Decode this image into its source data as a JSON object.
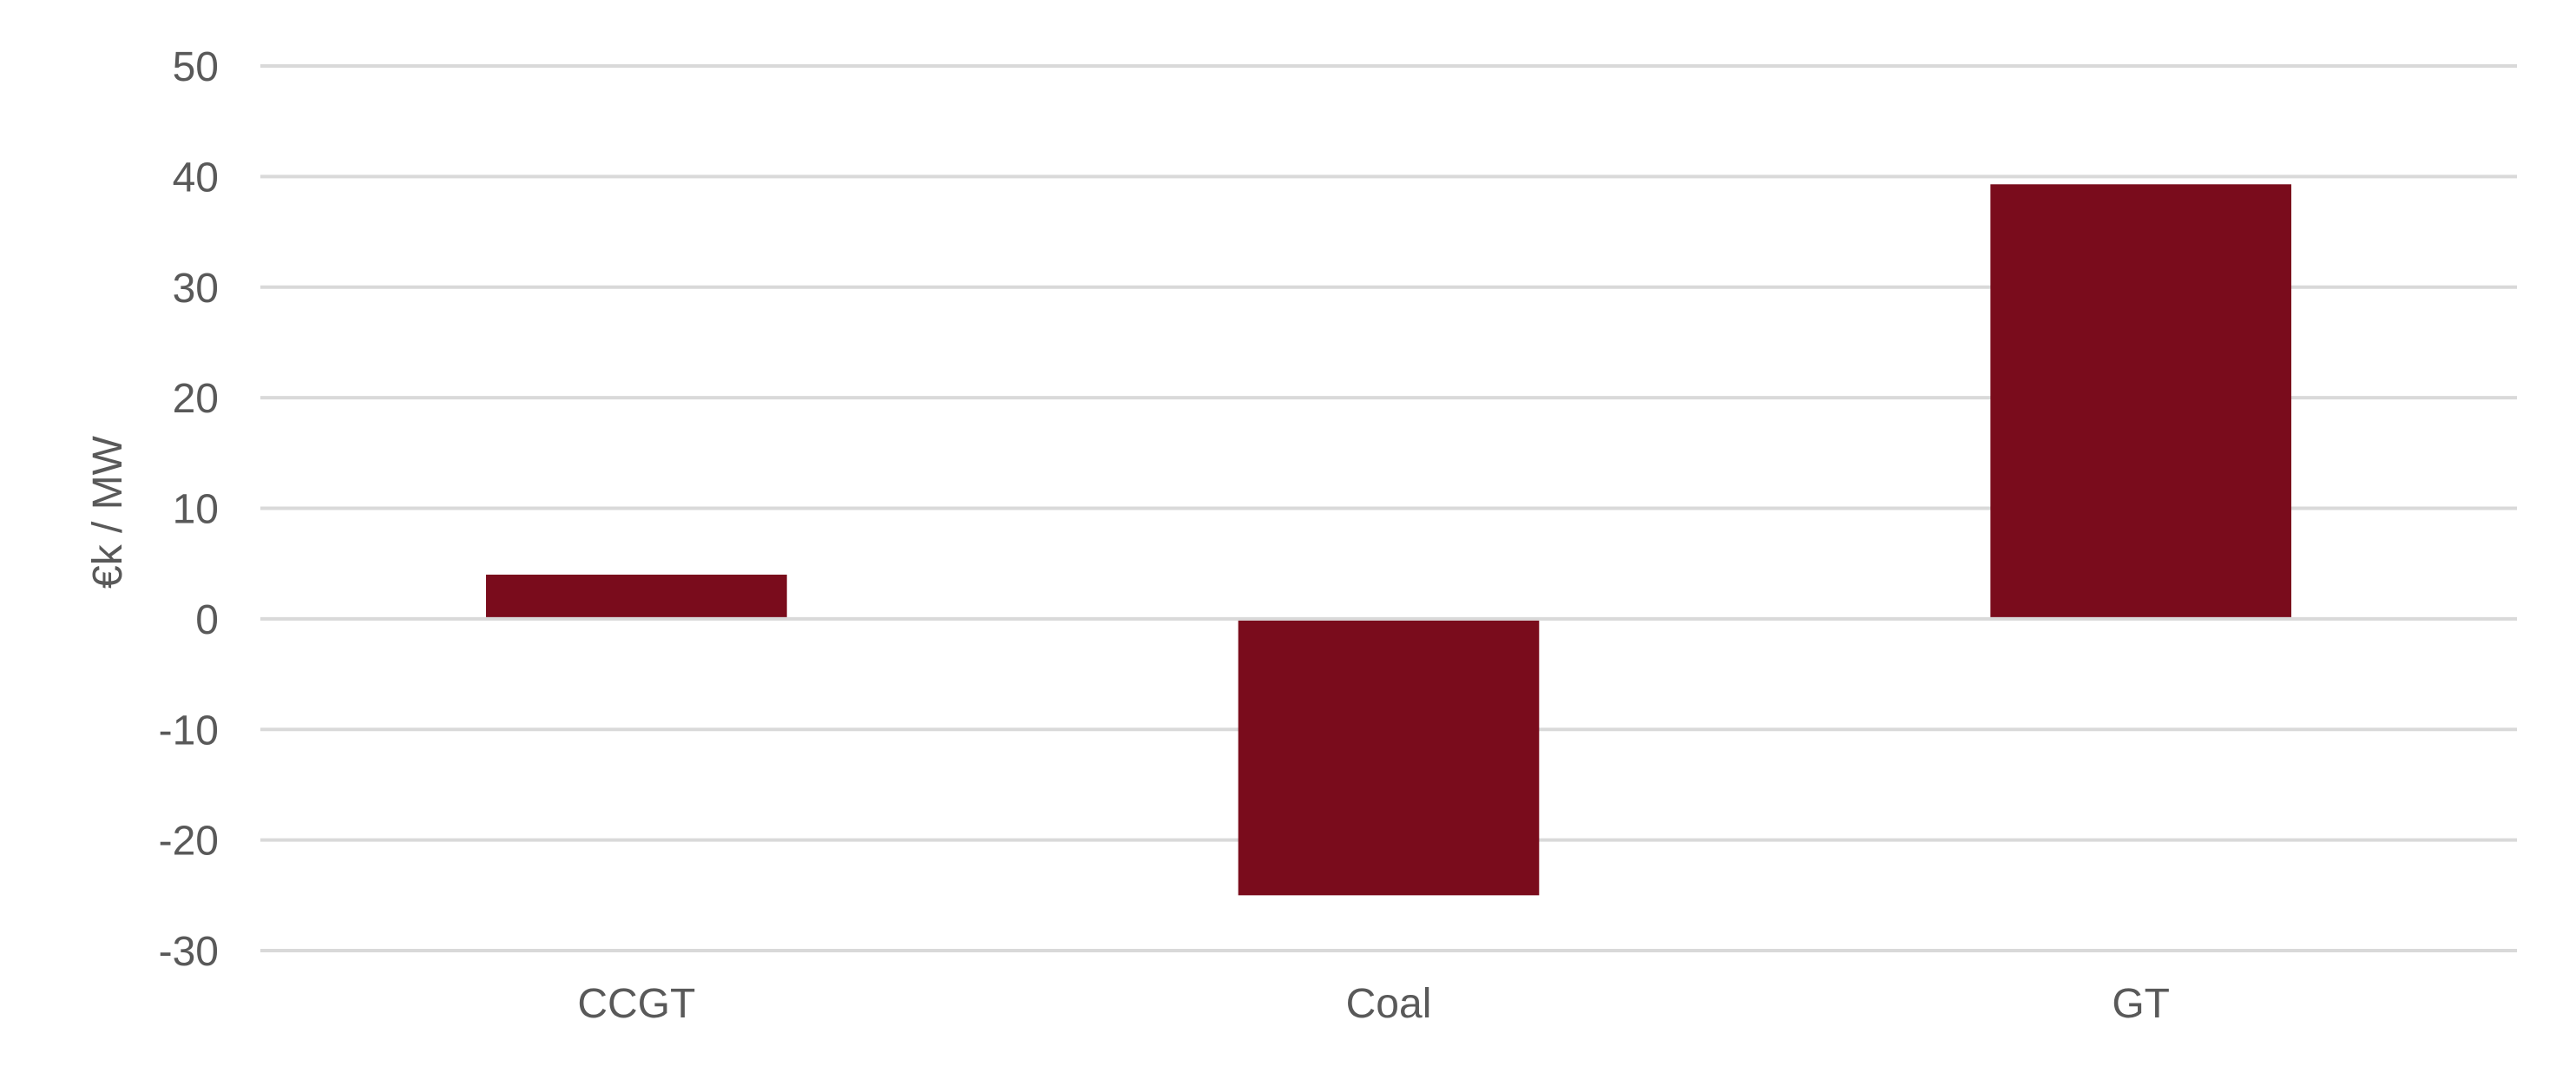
{
  "chart_data": {
    "type": "bar",
    "categories": [
      "CCGT",
      "Coal",
      "GT"
    ],
    "series": [
      {
        "values": [
          4,
          -25,
          39.3
        ]
      }
    ],
    "title": "",
    "xlabel": "",
    "ylabel": "€k / MW",
    "ylim": [
      -30,
      50
    ],
    "yticks": [
      "50",
      "40",
      "30",
      "20",
      "10",
      "0",
      "-10",
      "-20",
      "-30"
    ],
    "grid": true,
    "legend": "none",
    "bar_color": "#7a0c1c"
  }
}
